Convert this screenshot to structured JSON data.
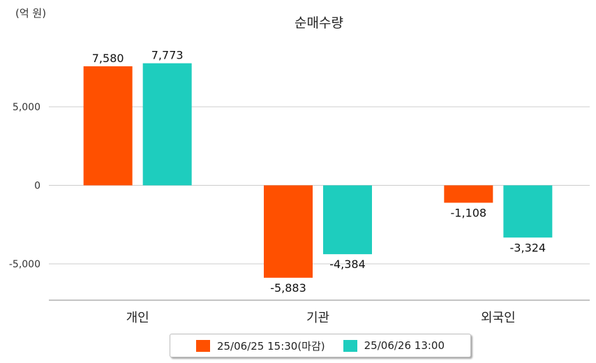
{
  "chart_data": {
    "type": "bar",
    "title": "순매수량",
    "unit_label": "(억 원)",
    "categories": [
      "개인",
      "기관",
      "외국인"
    ],
    "series": [
      {
        "name": "25/06/25 15:30(마감)",
        "color": "#ff5000",
        "values": [
          7580,
          -5883,
          -1108
        ],
        "labels": [
          "7,580",
          "-5,883",
          "-1,108"
        ]
      },
      {
        "name": "25/06/26 13:00",
        "color": "#1ecdbe",
        "values": [
          7773,
          -4384,
          -3324
        ],
        "labels": [
          "7,773",
          "-4,384",
          "-3,324"
        ]
      }
    ],
    "yticks": [
      5000,
      0,
      -5000
    ],
    "ytick_labels": [
      "5,000",
      "0",
      "-5,000"
    ],
    "ylim": [
      -7400,
      9600
    ],
    "grid": true,
    "legend_position": "bottom"
  }
}
